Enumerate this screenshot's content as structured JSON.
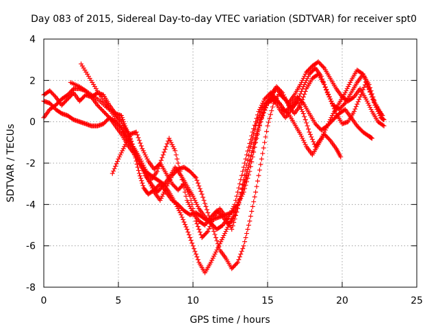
{
  "chart_data": {
    "type": "scatter",
    "title": "Day 083 of 2015, Sidereal Day-to-day VTEC variation (SDTVAR) for receiver spt0",
    "xlabel": "GPS time / hours",
    "ylabel": "SDTVAR / TECUs",
    "xlim": [
      0,
      25
    ],
    "ylim": [
      -8,
      4
    ],
    "xticks": [
      "0",
      "5",
      "10",
      "15",
      "20",
      "25"
    ],
    "yticks": [
      "-8",
      "-6",
      "-4",
      "-2",
      "0",
      "2",
      "4"
    ],
    "grid": true,
    "marker": "plus",
    "colors": {
      "series": "#ff0000",
      "grid": "#a0a0a0",
      "axes": "#000000"
    },
    "series": [
      {
        "points": [
          [
            0.0,
            1.3
          ],
          [
            0.4,
            1.5
          ],
          [
            0.8,
            1.2
          ],
          [
            1.2,
            0.8
          ],
          [
            1.6,
            1.1
          ],
          [
            2.0,
            1.4
          ],
          [
            2.4,
            1.0
          ],
          [
            2.8,
            1.3
          ],
          [
            3.2,
            1.2
          ],
          [
            3.6,
            1.4
          ],
          [
            4.0,
            1.3
          ],
          [
            4.4,
            0.8
          ],
          [
            4.8,
            0.4
          ],
          [
            5.2,
            0.3
          ],
          [
            5.5,
            -0.3
          ],
          [
            5.8,
            -0.8
          ],
          [
            6.1,
            -1.6
          ],
          [
            6.4,
            -2.5
          ],
          [
            6.7,
            -3.2
          ],
          [
            7.0,
            -3.5
          ],
          [
            7.4,
            -3.3
          ],
          [
            7.8,
            -3.0
          ],
          [
            8.2,
            -3.4
          ],
          [
            8.6,
            -3.8
          ],
          [
            9.0,
            -4.0
          ],
          [
            9.4,
            -4.3
          ],
          [
            9.8,
            -4.5
          ],
          [
            10.2,
            -4.4
          ],
          [
            10.6,
            -4.6
          ],
          [
            11.0,
            -4.8
          ],
          [
            11.4,
            -4.7
          ],
          [
            11.8,
            -4.6
          ],
          [
            12.2,
            -4.5
          ],
          [
            12.6,
            -4.4
          ],
          [
            13.0,
            -4.0
          ],
          [
            13.4,
            -3.4
          ],
          [
            13.8,
            -2.4
          ],
          [
            14.2,
            -1.0
          ],
          [
            14.6,
            0.2
          ],
          [
            15.0,
            0.9
          ],
          [
            15.4,
            1.1
          ],
          [
            15.8,
            0.6
          ],
          [
            16.2,
            0.2
          ],
          [
            16.6,
            0.6
          ],
          [
            17.0,
            1.0
          ],
          [
            17.4,
            0.4
          ],
          [
            17.8,
            -0.5
          ],
          [
            18.2,
            -1.2
          ],
          [
            18.6,
            -0.8
          ],
          [
            19.0,
            -0.2
          ],
          [
            19.4,
            0.4
          ],
          [
            19.8,
            0.9
          ],
          [
            20.2,
            1.4
          ],
          [
            20.6,
            2.0
          ],
          [
            21.0,
            2.5
          ],
          [
            21.4,
            2.3
          ],
          [
            21.8,
            1.6
          ],
          [
            22.2,
            0.8
          ],
          [
            22.6,
            0.2
          ],
          [
            22.8,
            0.1
          ]
        ]
      },
      {
        "points": [
          [
            0.0,
            0.2
          ],
          [
            0.4,
            0.6
          ],
          [
            0.8,
            0.8
          ],
          [
            1.2,
            1.1
          ],
          [
            1.6,
            1.3
          ],
          [
            2.0,
            1.6
          ],
          [
            2.4,
            1.6
          ],
          [
            2.8,
            1.5
          ],
          [
            3.2,
            1.2
          ],
          [
            3.6,
            0.8
          ],
          [
            4.0,
            0.5
          ],
          [
            4.4,
            0.2
          ],
          [
            4.8,
            -0.2
          ],
          [
            5.2,
            -0.6
          ],
          [
            5.6,
            -1.1
          ],
          [
            6.0,
            -1.5
          ],
          [
            6.4,
            -2.0
          ],
          [
            6.8,
            -2.4
          ],
          [
            7.2,
            -2.6
          ],
          [
            7.6,
            -2.8
          ],
          [
            8.0,
            -3.0
          ],
          [
            8.4,
            -3.4
          ],
          [
            8.8,
            -3.9
          ],
          [
            9.2,
            -4.5
          ],
          [
            9.6,
            -5.2
          ],
          [
            10.0,
            -6.0
          ],
          [
            10.4,
            -6.8
          ],
          [
            10.8,
            -7.3
          ],
          [
            11.2,
            -6.8
          ],
          [
            11.6,
            -6.2
          ],
          [
            12.0,
            -5.6
          ],
          [
            12.4,
            -5.0
          ],
          [
            12.8,
            -4.4
          ],
          [
            13.2,
            -3.6
          ],
          [
            13.6,
            -2.6
          ],
          [
            14.0,
            -1.4
          ],
          [
            14.4,
            -0.3
          ],
          [
            14.8,
            0.6
          ],
          [
            15.2,
            1.2
          ],
          [
            15.6,
            1.6
          ],
          [
            16.0,
            1.2
          ],
          [
            16.4,
            0.9
          ],
          [
            16.8,
            1.3
          ],
          [
            17.2,
            1.8
          ],
          [
            17.6,
            2.4
          ],
          [
            18.0,
            2.7
          ],
          [
            18.4,
            2.9
          ],
          [
            18.8,
            2.6
          ],
          [
            19.2,
            2.1
          ],
          [
            19.6,
            1.6
          ],
          [
            20.0,
            1.2
          ],
          [
            20.4,
            1.0
          ],
          [
            20.8,
            1.2
          ],
          [
            21.2,
            1.6
          ],
          [
            21.6,
            1.1
          ],
          [
            22.0,
            0.5
          ],
          [
            22.4,
            0.0
          ],
          [
            22.8,
            -0.2
          ]
        ]
      },
      {
        "points": [
          [
            0.0,
            1.0
          ],
          [
            0.4,
            0.9
          ],
          [
            0.8,
            0.6
          ],
          [
            1.2,
            0.4
          ],
          [
            1.6,
            0.3
          ],
          [
            2.0,
            0.1
          ],
          [
            2.4,
            0.0
          ],
          [
            2.8,
            -0.1
          ],
          [
            3.2,
            -0.2
          ],
          [
            3.6,
            -0.2
          ],
          [
            4.0,
            -0.1
          ],
          [
            4.4,
            0.2
          ],
          [
            4.8,
            0.0
          ],
          [
            5.2,
            -0.3
          ],
          [
            5.6,
            -0.8
          ],
          [
            6.0,
            -1.3
          ],
          [
            6.4,
            -1.9
          ],
          [
            6.8,
            -2.6
          ],
          [
            7.2,
            -3.0
          ],
          [
            7.6,
            -3.4
          ],
          [
            8.0,
            -3.1
          ],
          [
            8.4,
            -2.7
          ],
          [
            8.8,
            -2.2
          ],
          [
            9.2,
            -2.6
          ],
          [
            9.6,
            -3.1
          ],
          [
            10.0,
            -3.6
          ],
          [
            10.4,
            -4.2
          ],
          [
            10.8,
            -4.6
          ],
          [
            11.2,
            -4.9
          ],
          [
            11.6,
            -5.2
          ],
          [
            12.0,
            -5.0
          ],
          [
            12.4,
            -4.6
          ],
          [
            12.8,
            -4.0
          ],
          [
            13.2,
            -2.8
          ],
          [
            13.6,
            -1.6
          ],
          [
            14.0,
            -0.5
          ],
          [
            14.4,
            0.5
          ],
          [
            14.8,
            1.1
          ],
          [
            15.2,
            1.4
          ],
          [
            15.6,
            1.1
          ],
          [
            16.0,
            0.6
          ],
          [
            16.4,
            0.4
          ],
          [
            16.8,
            -0.1
          ],
          [
            17.2,
            -0.6
          ],
          [
            17.6,
            -1.2
          ],
          [
            18.0,
            -1.6
          ],
          [
            18.4,
            -1.1
          ],
          [
            18.8,
            -0.6
          ],
          [
            19.2,
            -0.9
          ],
          [
            19.6,
            -1.3
          ],
          [
            19.9,
            -1.7
          ]
        ]
      },
      {
        "points": [
          [
            2.5,
            2.8
          ],
          [
            3.0,
            2.2
          ],
          [
            3.5,
            1.6
          ],
          [
            4.0,
            1.0
          ],
          [
            4.5,
            0.5
          ],
          [
            5.0,
            0.0
          ],
          [
            5.4,
            -0.6
          ],
          [
            5.8,
            -1.0
          ],
          [
            6.2,
            -1.6
          ],
          [
            6.6,
            -2.2
          ],
          [
            7.0,
            -2.8
          ],
          [
            7.4,
            -3.4
          ],
          [
            7.8,
            -3.8
          ],
          [
            8.2,
            -3.2
          ],
          [
            8.6,
            -2.6
          ],
          [
            9.0,
            -2.3
          ],
          [
            9.4,
            -2.2
          ],
          [
            9.8,
            -2.4
          ],
          [
            10.2,
            -2.7
          ],
          [
            10.6,
            -3.5
          ],
          [
            11.0,
            -4.4
          ],
          [
            11.4,
            -5.3
          ],
          [
            11.8,
            -6.2
          ],
          [
            12.2,
            -6.6
          ],
          [
            12.6,
            -7.1
          ],
          [
            13.0,
            -6.8
          ],
          [
            13.4,
            -6.0
          ],
          [
            13.8,
            -4.8
          ],
          [
            14.2,
            -3.4
          ],
          [
            14.6,
            -1.8
          ],
          [
            15.0,
            -0.2
          ],
          [
            15.4,
            0.9
          ],
          [
            15.8,
            1.4
          ],
          [
            16.2,
            1.1
          ],
          [
            16.6,
            0.6
          ],
          [
            17.0,
            1.0
          ],
          [
            17.4,
            1.7
          ],
          [
            17.8,
            2.3
          ],
          [
            18.2,
            2.6
          ],
          [
            18.6,
            2.2
          ],
          [
            19.0,
            1.4
          ],
          [
            19.4,
            0.8
          ],
          [
            19.8,
            0.6
          ],
          [
            20.2,
            0.9
          ],
          [
            20.6,
            1.4
          ],
          [
            21.0,
            1.9
          ],
          [
            21.4,
            2.3
          ],
          [
            21.8,
            1.8
          ],
          [
            22.2,
            0.9
          ],
          [
            22.6,
            0.4
          ]
        ]
      },
      {
        "points": [
          [
            1.8,
            1.9
          ],
          [
            2.4,
            1.7
          ],
          [
            3.0,
            1.4
          ],
          [
            3.6,
            1.1
          ],
          [
            4.2,
            0.7
          ],
          [
            4.8,
            0.4
          ],
          [
            5.2,
            0.0
          ],
          [
            5.6,
            -0.5
          ],
          [
            6.0,
            -1.2
          ],
          [
            6.4,
            -1.7
          ],
          [
            6.8,
            -2.3
          ],
          [
            7.2,
            -2.8
          ],
          [
            7.6,
            -2.4
          ],
          [
            8.0,
            -1.6
          ],
          [
            8.4,
            -0.8
          ],
          [
            8.8,
            -1.4
          ],
          [
            9.2,
            -2.6
          ],
          [
            9.6,
            -3.8
          ],
          [
            10.0,
            -4.4
          ],
          [
            10.4,
            -4.8
          ],
          [
            10.8,
            -5.0
          ],
          [
            11.2,
            -4.6
          ],
          [
            11.6,
            -4.3
          ],
          [
            12.0,
            -4.6
          ],
          [
            12.4,
            -5.0
          ],
          [
            12.8,
            -4.5
          ],
          [
            13.2,
            -3.6
          ],
          [
            13.6,
            -2.5
          ],
          [
            14.0,
            -1.3
          ],
          [
            14.4,
            -0.2
          ],
          [
            14.8,
            0.7
          ],
          [
            15.2,
            1.3
          ],
          [
            15.6,
            1.7
          ],
          [
            16.0,
            1.4
          ],
          [
            16.4,
            0.8
          ],
          [
            16.8,
            0.4
          ],
          [
            17.2,
            0.8
          ],
          [
            17.6,
            1.6
          ],
          [
            18.0,
            2.1
          ],
          [
            18.4,
            2.3
          ],
          [
            18.8,
            1.8
          ],
          [
            19.2,
            1.1
          ],
          [
            19.6,
            0.4
          ],
          [
            20.0,
            -0.1
          ],
          [
            20.4,
            0.0
          ],
          [
            20.8,
            0.5
          ],
          [
            21.2,
            1.2
          ],
          [
            21.6,
            1.9
          ],
          [
            22.0,
            1.2
          ],
          [
            22.4,
            0.6
          ],
          [
            22.7,
            0.3
          ]
        ]
      },
      {
        "points": [
          [
            4.6,
            -2.5
          ],
          [
            5.0,
            -1.8
          ],
          [
            5.4,
            -1.2
          ],
          [
            5.8,
            -0.6
          ],
          [
            6.2,
            -0.5
          ],
          [
            6.6,
            -1.3
          ],
          [
            7.0,
            -1.9
          ],
          [
            7.4,
            -2.3
          ],
          [
            7.8,
            -2.0
          ],
          [
            8.2,
            -2.5
          ],
          [
            8.6,
            -3.0
          ],
          [
            9.0,
            -3.3
          ],
          [
            9.4,
            -3.0
          ],
          [
            9.8,
            -3.6
          ],
          [
            10.2,
            -4.8
          ],
          [
            10.6,
            -5.6
          ],
          [
            11.0,
            -5.3
          ],
          [
            11.4,
            -4.6
          ],
          [
            11.8,
            -4.2
          ],
          [
            12.2,
            -4.6
          ],
          [
            12.6,
            -5.2
          ],
          [
            13.0,
            -4.2
          ],
          [
            13.4,
            -2.8
          ],
          [
            13.8,
            -1.4
          ],
          [
            14.2,
            -0.2
          ],
          [
            14.6,
            0.6
          ],
          [
            15.0,
            1.0
          ],
          [
            15.4,
            1.2
          ],
          [
            15.8,
            0.9
          ],
          [
            16.2,
            0.5
          ],
          [
            16.6,
            0.8
          ],
          [
            17.0,
            1.2
          ],
          [
            17.4,
            0.9
          ],
          [
            17.8,
            0.4
          ],
          [
            18.2,
            -0.1
          ],
          [
            18.6,
            -0.4
          ],
          [
            19.0,
            -0.2
          ],
          [
            19.4,
            0.1
          ],
          [
            19.8,
            0.4
          ],
          [
            20.2,
            0.6
          ],
          [
            20.6,
            0.2
          ],
          [
            21.0,
            -0.2
          ],
          [
            21.4,
            -0.5
          ],
          [
            21.8,
            -0.7
          ],
          [
            22.0,
            -0.8
          ]
        ]
      }
    ]
  }
}
